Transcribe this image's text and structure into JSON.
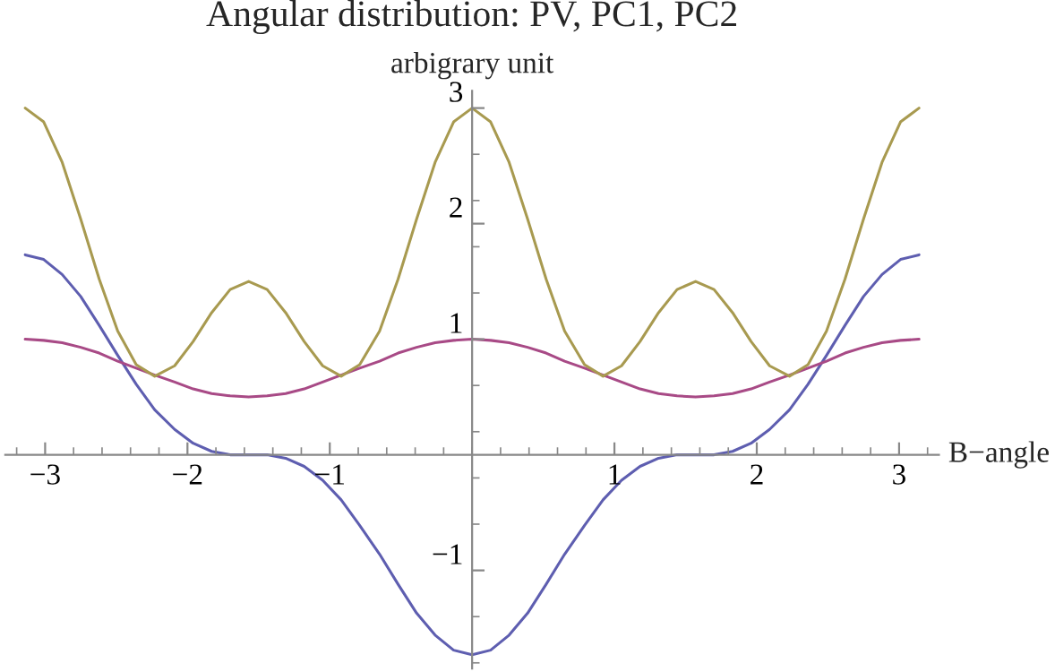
{
  "chart_data": {
    "type": "line",
    "title": "Angular distribution: PV, PC1, PC2",
    "ylabel": "arbigrary unit",
    "xlabel": "B−angle",
    "x": [
      -3.14,
      -3.01,
      -2.88,
      -2.75,
      -2.62,
      -2.49,
      -2.36,
      -2.23,
      -2.09,
      -1.96,
      -1.83,
      -1.7,
      -1.57,
      -1.44,
      -1.31,
      -1.18,
      -1.05,
      -0.92,
      -0.79,
      -0.65,
      -0.52,
      -0.39,
      -0.26,
      -0.13,
      0,
      0.13,
      0.26,
      0.39,
      0.52,
      0.65,
      0.79,
      0.92,
      1.05,
      1.18,
      1.31,
      1.44,
      1.57,
      1.7,
      1.83,
      1.96,
      2.09,
      2.23,
      2.36,
      2.49,
      2.62,
      2.75,
      2.88,
      3.01,
      3.14
    ],
    "series": [
      {
        "color": "#5e5eb0",
        "values": [
          1.73,
          1.69,
          1.56,
          1.37,
          1.12,
          0.86,
          0.61,
          0.39,
          0.22,
          0.1,
          0.03,
          0,
          0,
          0,
          -0.03,
          -0.1,
          -0.22,
          -0.39,
          -0.61,
          -0.86,
          -1.12,
          -1.37,
          -1.56,
          -1.69,
          -1.73,
          -1.69,
          -1.56,
          -1.37,
          -1.12,
          -0.86,
          -0.61,
          -0.39,
          -0.22,
          -0.1,
          -0.03,
          0,
          0,
          0,
          0.03,
          0.1,
          0.22,
          0.39,
          0.61,
          0.86,
          1.12,
          1.37,
          1.56,
          1.69,
          1.73
        ]
      },
      {
        "color": "#a84a86",
        "values": [
          1,
          0.99,
          0.97,
          0.93,
          0.88,
          0.81,
          0.75,
          0.69,
          0.63,
          0.57,
          0.53,
          0.51,
          0.5,
          0.51,
          0.53,
          0.57,
          0.63,
          0.69,
          0.75,
          0.81,
          0.88,
          0.93,
          0.97,
          0.99,
          1,
          0.99,
          0.97,
          0.93,
          0.88,
          0.81,
          0.75,
          0.69,
          0.63,
          0.57,
          0.53,
          0.51,
          0.5,
          0.51,
          0.53,
          0.57,
          0.63,
          0.69,
          0.75,
          0.81,
          0.88,
          0.93,
          0.97,
          0.99,
          1
        ]
      },
      {
        "color": "#a89a50",
        "values": [
          3,
          2.88,
          2.53,
          2.04,
          1.52,
          1.07,
          0.78,
          0.68,
          0.77,
          0.98,
          1.23,
          1.43,
          1.5,
          1.43,
          1.23,
          0.98,
          0.77,
          0.68,
          0.78,
          1.07,
          1.52,
          2.04,
          2.53,
          2.88,
          3,
          2.88,
          2.53,
          2.04,
          1.52,
          1.07,
          0.78,
          0.68,
          0.77,
          0.98,
          1.23,
          1.43,
          1.5,
          1.43,
          1.23,
          0.98,
          0.77,
          0.68,
          0.78,
          1.07,
          1.52,
          2.04,
          2.53,
          2.88,
          3
        ]
      }
    ],
    "xlim": [
      -3.28,
      3.28
    ],
    "ylim": [
      -1.85,
      3.15
    ],
    "xticks": [
      -3,
      -2,
      -1,
      1,
      2,
      3
    ],
    "yticks": [
      -1,
      1,
      2,
      3
    ],
    "line_style": "solid",
    "grid": false,
    "legend": false
  }
}
